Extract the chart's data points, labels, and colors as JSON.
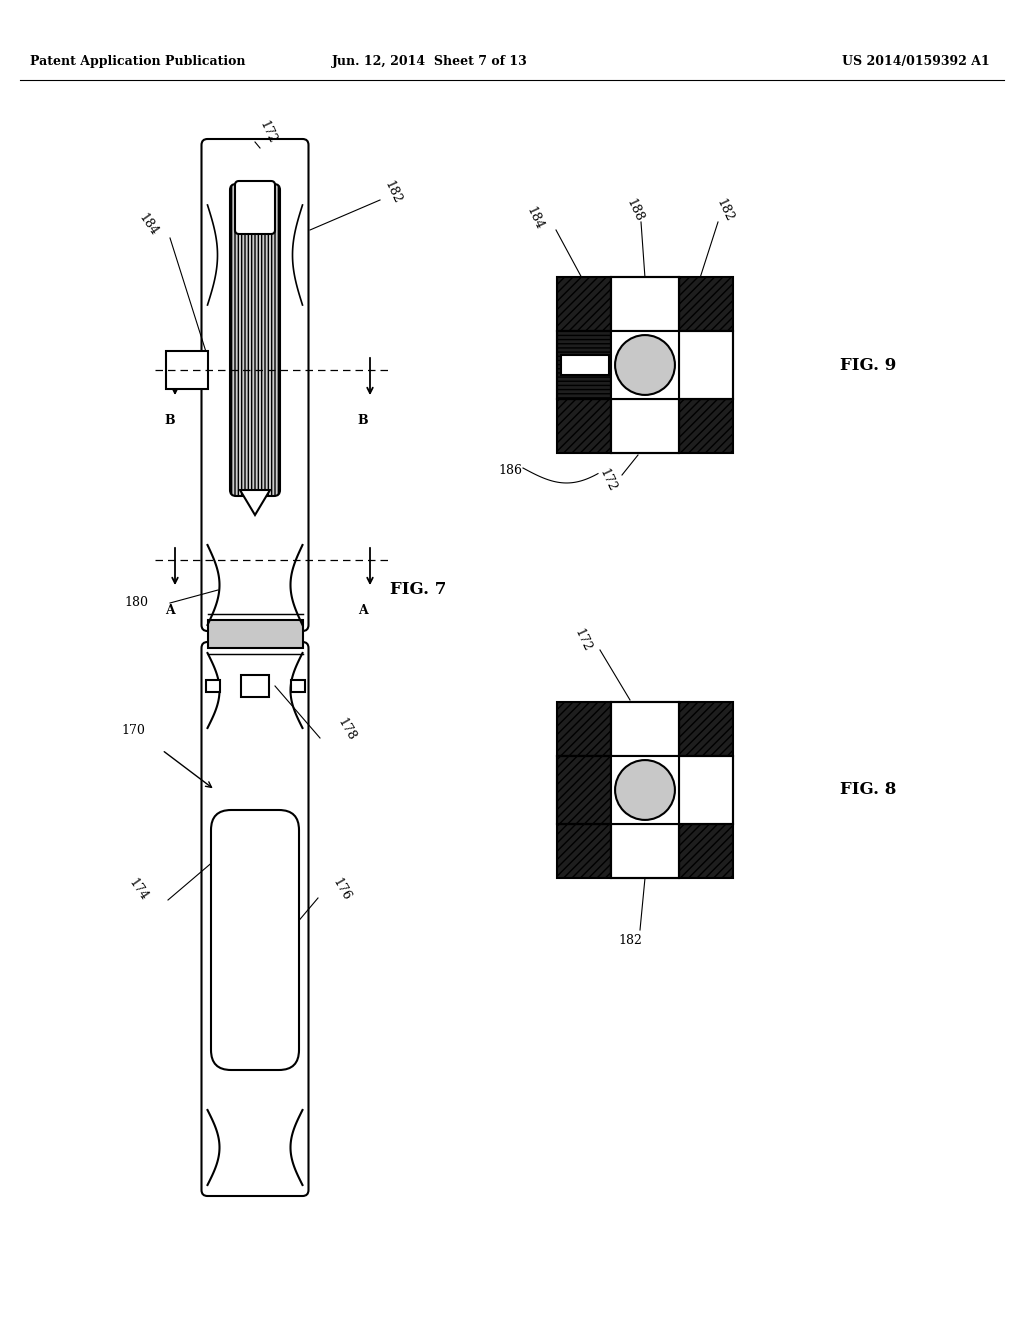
{
  "header_left": "Patent Application Publication",
  "header_center": "Jun. 12, 2014  Sheet 7 of 13",
  "header_right": "US 2014/0159392 A1",
  "bg_color": "#ffffff",
  "line_color": "#000000",
  "fig7_label": "FIG. 7",
  "fig8_label": "FIG. 8",
  "fig9_label": "FIG. 9"
}
